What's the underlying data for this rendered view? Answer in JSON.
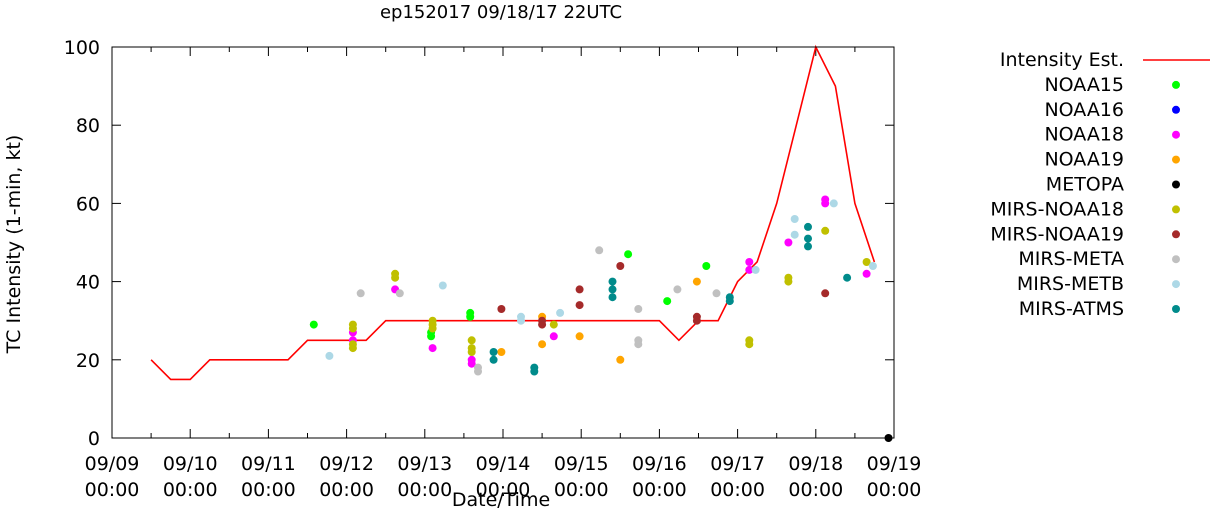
{
  "chart_data": {
    "type": "scatter",
    "title": "ep152017 09/18/17 22UTC",
    "xlabel": "Date/Time",
    "ylabel": "TC Intensity (1-min, kt)",
    "xlim": [
      0,
      10
    ],
    "ylim": [
      0,
      100
    ],
    "y_ticks": [
      0,
      20,
      40,
      60,
      80,
      100
    ],
    "x_ticks": [
      {
        "value": 0,
        "date": "09/09",
        "time": "00:00"
      },
      {
        "value": 1,
        "date": "09/10",
        "time": "00:00"
      },
      {
        "value": 2,
        "date": "09/11",
        "time": "00:00"
      },
      {
        "value": 3,
        "date": "09/12",
        "time": "00:00"
      },
      {
        "value": 4,
        "date": "09/13",
        "time": "00:00"
      },
      {
        "value": 5,
        "date": "09/14",
        "time": "00:00"
      },
      {
        "value": 6,
        "date": "09/15",
        "time": "00:00"
      },
      {
        "value": 7,
        "date": "09/16",
        "time": "00:00"
      },
      {
        "value": 8,
        "date": "09/17",
        "time": "00:00"
      },
      {
        "value": 9,
        "date": "09/18",
        "time": "00:00"
      },
      {
        "value": 10,
        "date": "09/19",
        "time": "00:00"
      }
    ],
    "line": {
      "name": "Intensity Est.",
      "color": "#ff0000",
      "points": [
        [
          0.5,
          20
        ],
        [
          0.75,
          15
        ],
        [
          1.0,
          15
        ],
        [
          1.25,
          20
        ],
        [
          1.5,
          20
        ],
        [
          2.0,
          20
        ],
        [
          2.25,
          20
        ],
        [
          2.5,
          25
        ],
        [
          3.0,
          25
        ],
        [
          3.25,
          25
        ],
        [
          3.5,
          30
        ],
        [
          4.0,
          30
        ],
        [
          5.0,
          30
        ],
        [
          6.0,
          30
        ],
        [
          6.5,
          30
        ],
        [
          7.0,
          30
        ],
        [
          7.25,
          25
        ],
        [
          7.5,
          30
        ],
        [
          7.75,
          30
        ],
        [
          8.0,
          40
        ],
        [
          8.25,
          45
        ],
        [
          8.5,
          60
        ],
        [
          8.75,
          80
        ],
        [
          9.0,
          100
        ],
        [
          9.25,
          90
        ],
        [
          9.5,
          60
        ],
        [
          9.75,
          45
        ]
      ]
    },
    "series": [
      {
        "name": "NOAA15",
        "color": "#00ff00",
        "points": [
          [
            2.58,
            29
          ],
          [
            4.08,
            26
          ],
          [
            4.08,
            27
          ],
          [
            4.58,
            31
          ],
          [
            4.58,
            32
          ],
          [
            6.6,
            47
          ],
          [
            7.1,
            35
          ],
          [
            7.6,
            44
          ]
        ]
      },
      {
        "name": "NOAA16",
        "color": "#0000ff",
        "points": []
      },
      {
        "name": "NOAA18",
        "color": "#ff00ff",
        "points": [
          [
            3.08,
            25
          ],
          [
            3.08,
            27
          ],
          [
            3.62,
            38
          ],
          [
            4.1,
            23
          ],
          [
            4.6,
            19
          ],
          [
            4.6,
            20
          ],
          [
            5.65,
            26
          ],
          [
            8.15,
            43
          ],
          [
            8.15,
            45
          ],
          [
            8.65,
            50
          ],
          [
            9.12,
            60
          ],
          [
            9.12,
            61
          ],
          [
            9.65,
            42
          ]
        ]
      },
      {
        "name": "NOAA19",
        "color": "#ffa500",
        "points": [
          [
            4.98,
            22
          ],
          [
            5.5,
            24
          ],
          [
            5.5,
            31
          ],
          [
            5.98,
            26
          ],
          [
            6.5,
            20
          ],
          [
            7.48,
            40
          ]
        ]
      },
      {
        "name": "METOPA",
        "color": "#000000",
        "points": [
          [
            9.93,
            0
          ]
        ]
      },
      {
        "name": "MIRS-NOAA18",
        "color": "#c0c000",
        "points": [
          [
            3.08,
            23
          ],
          [
            3.08,
            24
          ],
          [
            3.08,
            28
          ],
          [
            3.08,
            29
          ],
          [
            3.62,
            41
          ],
          [
            3.62,
            42
          ],
          [
            4.1,
            28
          ],
          [
            4.1,
            29
          ],
          [
            4.1,
            30
          ],
          [
            4.6,
            22
          ],
          [
            4.6,
            23
          ],
          [
            4.6,
            25
          ],
          [
            5.65,
            29
          ],
          [
            8.15,
            24
          ],
          [
            8.15,
            25
          ],
          [
            8.65,
            40
          ],
          [
            8.65,
            41
          ],
          [
            9.12,
            53
          ],
          [
            9.65,
            45
          ]
        ]
      },
      {
        "name": "MIRS-NOAA19",
        "color": "#a52a2a",
        "points": [
          [
            4.98,
            33
          ],
          [
            5.5,
            29
          ],
          [
            5.5,
            30
          ],
          [
            5.98,
            34
          ],
          [
            5.98,
            38
          ],
          [
            6.5,
            44
          ],
          [
            7.48,
            30
          ],
          [
            7.48,
            31
          ],
          [
            9.12,
            37
          ]
        ]
      },
      {
        "name": "MIRS-META",
        "color": "#c0c0c0",
        "points": [
          [
            3.18,
            37
          ],
          [
            3.68,
            37
          ],
          [
            4.68,
            17
          ],
          [
            4.68,
            18
          ],
          [
            6.23,
            48
          ],
          [
            6.73,
            24
          ],
          [
            6.73,
            25
          ],
          [
            6.73,
            33
          ],
          [
            7.23,
            38
          ],
          [
            7.73,
            37
          ]
        ]
      },
      {
        "name": "MIRS-METB",
        "color": "#add8e6",
        "points": [
          [
            2.78,
            21
          ],
          [
            4.23,
            39
          ],
          [
            5.23,
            30
          ],
          [
            5.23,
            31
          ],
          [
            5.73,
            32
          ],
          [
            8.23,
            43
          ],
          [
            8.73,
            56
          ],
          [
            8.73,
            52
          ],
          [
            9.23,
            60
          ],
          [
            9.73,
            44
          ]
        ]
      },
      {
        "name": "MIRS-ATMS",
        "color": "#008b8b",
        "points": [
          [
            4.88,
            20
          ],
          [
            4.88,
            22
          ],
          [
            5.4,
            17
          ],
          [
            5.4,
            18
          ],
          [
            6.4,
            36
          ],
          [
            6.4,
            38
          ],
          [
            6.4,
            40
          ],
          [
            7.9,
            35
          ],
          [
            7.9,
            36
          ],
          [
            8.9,
            49
          ],
          [
            8.9,
            51
          ],
          [
            8.9,
            54
          ],
          [
            9.4,
            41
          ]
        ]
      }
    ]
  }
}
